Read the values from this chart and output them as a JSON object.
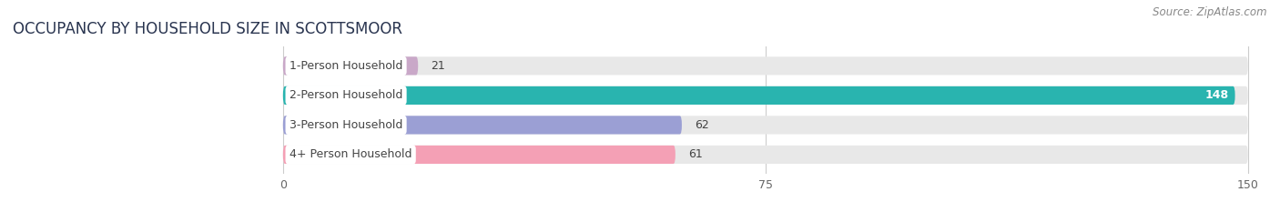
{
  "title": "OCCUPANCY BY HOUSEHOLD SIZE IN SCOTTSMOOR",
  "source": "Source: ZipAtlas.com",
  "categories": [
    "1-Person Household",
    "2-Person Household",
    "3-Person Household",
    "4+ Person Household"
  ],
  "values": [
    21,
    148,
    62,
    61
  ],
  "bar_colors": [
    "#c9a8c8",
    "#29b4af",
    "#9b9fd4",
    "#f4a0b5"
  ],
  "value_text_colors": [
    "#333333",
    "#ffffff",
    "#333333",
    "#333333"
  ],
  "background_color": "#ffffff",
  "bar_bg_color": "#e8e8e8",
  "xlim_min": 0,
  "xlim_max": 150,
  "xticks": [
    0,
    75,
    150
  ],
  "title_fontsize": 12,
  "label_fontsize": 9,
  "value_fontsize": 9,
  "source_fontsize": 8.5,
  "title_color": "#2a3550",
  "label_color": "#444444",
  "source_color": "#888888"
}
